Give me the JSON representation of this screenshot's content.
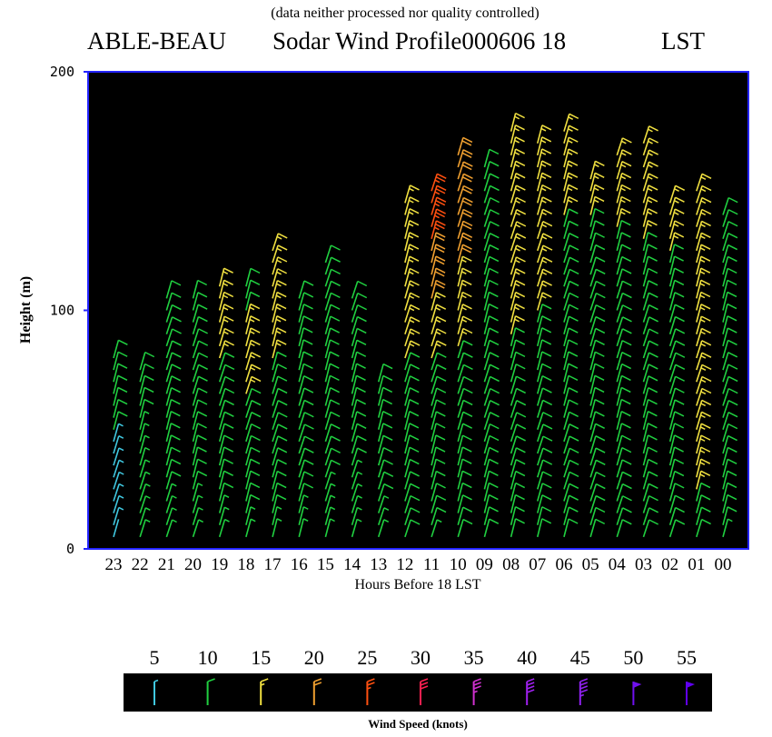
{
  "page": {
    "note": "(data neither processed nor quality controlled)",
    "title_station": "ABLE-BEAU",
    "title_main": "Sodar Wind Profile000606 18",
    "title_unit": "LST"
  },
  "chart_data": {
    "type": "wind-barb profile",
    "xlabel": "Hours Before  18    LST",
    "ylabel": "Height  (m)",
    "ylim": [
      0,
      200
    ],
    "y_ticks": [
      "0",
      "100",
      "200"
    ],
    "x_ticks": [
      "23",
      "22",
      "21",
      "20",
      "19",
      "18",
      "17",
      "16",
      "15",
      "14",
      "13",
      "12",
      "11",
      "10",
      "09",
      "08",
      "07",
      "06",
      "05",
      "04",
      "03",
      "02",
      "01",
      "00"
    ],
    "height_step_m": 5,
    "profiles": [
      {
        "hour": "23",
        "speeds_kt": [
          3,
          7,
          7,
          7,
          7,
          7,
          7,
          7,
          7,
          11,
          11,
          11,
          11,
          11,
          11,
          11
        ]
      },
      {
        "hour": "22",
        "speeds_kt": [
          8,
          8,
          8,
          8,
          8,
          8,
          8,
          8,
          8,
          8,
          12,
          12,
          12,
          12,
          12
        ]
      },
      {
        "hour": "21",
        "speeds_kt": [
          8,
          8,
          8,
          8,
          12,
          12,
          12,
          12,
          12,
          12,
          12,
          12,
          12,
          12,
          12,
          12,
          12,
          12,
          12,
          12,
          12
        ]
      },
      {
        "hour": "20",
        "speeds_kt": [
          8,
          8,
          8,
          8,
          12,
          12,
          12,
          12,
          12,
          12,
          12,
          12,
          12,
          12,
          12,
          12,
          12,
          12,
          12,
          12,
          12
        ]
      },
      {
        "hour": "19",
        "speeds_kt": [
          8,
          8,
          8,
          12,
          12,
          12,
          12,
          12,
          12,
          12,
          12,
          12,
          12,
          12,
          12,
          17,
          17,
          17,
          17,
          17,
          17,
          17
        ]
      },
      {
        "hour": "18",
        "speeds_kt": [
          8,
          8,
          12,
          12,
          12,
          12,
          12,
          12,
          12,
          12,
          12,
          12,
          17,
          17,
          17,
          17,
          17,
          17,
          17,
          12,
          12,
          12
        ]
      },
      {
        "hour": "17",
        "speeds_kt": [
          8,
          8,
          12,
          12,
          12,
          12,
          12,
          12,
          12,
          12,
          12,
          12,
          12,
          12,
          12,
          17,
          17,
          17,
          17,
          17,
          17,
          17,
          17,
          17,
          17
        ]
      },
      {
        "hour": "16",
        "speeds_kt": [
          8,
          8,
          8,
          12,
          12,
          12,
          12,
          12,
          12,
          12,
          12,
          12,
          12,
          12,
          12,
          12,
          12,
          12,
          12,
          12,
          12
        ]
      },
      {
        "hour": "15",
        "speeds_kt": [
          8,
          8,
          8,
          8,
          8,
          12,
          12,
          12,
          12,
          12,
          12,
          12,
          12,
          12,
          12,
          12,
          12,
          12,
          12,
          12,
          12,
          12,
          12,
          12
        ]
      },
      {
        "hour": "14",
        "speeds_kt": [
          8,
          8,
          8,
          8,
          8,
          8,
          12,
          12,
          12,
          12,
          12,
          12,
          12,
          12,
          12,
          12,
          12,
          12,
          12,
          12,
          12
        ]
      },
      {
        "hour": "13",
        "speeds_kt": [
          8,
          8,
          8,
          12,
          12,
          12,
          12,
          12,
          12,
          12,
          12,
          12,
          12,
          12
        ]
      },
      {
        "hour": "12",
        "speeds_kt": [
          12,
          12,
          12,
          12,
          12,
          12,
          12,
          12,
          12,
          12,
          12,
          12,
          12,
          12,
          12,
          17,
          17,
          17,
          17,
          17,
          17,
          17,
          17,
          17,
          17,
          17,
          17,
          17,
          17
        ]
      },
      {
        "hour": "11",
        "speeds_kt": [
          8,
          12,
          12,
          12,
          12,
          12,
          12,
          12,
          12,
          12,
          12,
          12,
          12,
          12,
          12,
          17,
          17,
          17,
          17,
          17,
          22,
          22,
          22,
          22,
          22,
          27,
          27,
          27,
          27,
          27
        ]
      },
      {
        "hour": "10",
        "speeds_kt": [
          12,
          12,
          12,
          12,
          12,
          12,
          12,
          12,
          12,
          12,
          12,
          12,
          12,
          12,
          12,
          12,
          17,
          17,
          17,
          17,
          17,
          17,
          17,
          22,
          22,
          22,
          22,
          22,
          22,
          22,
          22,
          22,
          22
        ]
      },
      {
        "hour": "09",
        "speeds_kt": [
          12,
          12,
          12,
          12,
          12,
          12,
          12,
          12,
          12,
          12,
          12,
          12,
          12,
          12,
          12,
          12,
          12,
          12,
          12,
          12,
          12,
          12,
          12,
          12,
          12,
          12,
          12,
          12,
          12,
          12,
          12,
          12
        ]
      },
      {
        "hour": "08",
        "speeds_kt": [
          12,
          12,
          12,
          12,
          12,
          12,
          12,
          12,
          12,
          12,
          12,
          12,
          12,
          12,
          12,
          12,
          12,
          17,
          17,
          17,
          17,
          17,
          17,
          17,
          17,
          17,
          17,
          17,
          17,
          17,
          17,
          17,
          17,
          17,
          17
        ]
      },
      {
        "hour": "07",
        "speeds_kt": [
          12,
          12,
          12,
          12,
          12,
          12,
          12,
          12,
          12,
          12,
          12,
          12,
          12,
          12,
          12,
          12,
          12,
          12,
          12,
          17,
          17,
          17,
          17,
          17,
          17,
          17,
          17,
          17,
          17,
          17,
          17,
          17,
          17,
          17
        ]
      },
      {
        "hour": "06",
        "speeds_kt": [
          12,
          12,
          12,
          12,
          12,
          12,
          12,
          12,
          12,
          12,
          12,
          12,
          12,
          12,
          12,
          12,
          12,
          12,
          12,
          12,
          12,
          12,
          12,
          12,
          12,
          12,
          12,
          17,
          17,
          17,
          17,
          17,
          17,
          17,
          17
        ]
      },
      {
        "hour": "05",
        "speeds_kt": [
          12,
          12,
          12,
          12,
          12,
          12,
          12,
          12,
          12,
          12,
          12,
          12,
          12,
          12,
          12,
          12,
          12,
          12,
          12,
          12,
          12,
          12,
          12,
          12,
          12,
          12,
          12,
          17,
          17,
          17,
          17
        ]
      },
      {
        "hour": "04",
        "speeds_kt": [
          12,
          12,
          12,
          12,
          12,
          12,
          12,
          12,
          12,
          12,
          12,
          12,
          12,
          12,
          12,
          12,
          12,
          12,
          12,
          12,
          12,
          12,
          12,
          12,
          12,
          12,
          17,
          17,
          17,
          17,
          17,
          17,
          17
        ]
      },
      {
        "hour": "03",
        "speeds_kt": [
          12,
          12,
          12,
          12,
          12,
          12,
          12,
          12,
          12,
          12,
          12,
          12,
          12,
          12,
          12,
          12,
          12,
          12,
          12,
          12,
          12,
          12,
          12,
          12,
          12,
          17,
          17,
          17,
          17,
          17,
          17,
          17,
          17,
          17
        ]
      },
      {
        "hour": "02",
        "speeds_kt": [
          12,
          12,
          12,
          12,
          12,
          12,
          12,
          12,
          12,
          12,
          12,
          12,
          12,
          12,
          12,
          12,
          12,
          12,
          12,
          12,
          12,
          12,
          12,
          12,
          17,
          17,
          17,
          17,
          17
        ]
      },
      {
        "hour": "01",
        "speeds_kt": [
          12,
          12,
          12,
          12,
          17,
          17,
          17,
          17,
          17,
          17,
          17,
          17,
          17,
          17,
          17,
          17,
          17,
          17,
          17,
          17,
          17,
          17,
          17,
          17,
          17,
          17,
          17,
          17,
          17,
          17
        ]
      },
      {
        "hour": "00",
        "speeds_kt": [
          8,
          12,
          12,
          12,
          12,
          12,
          12,
          12,
          12,
          12,
          12,
          12,
          12,
          12,
          12,
          12,
          12,
          12,
          12,
          12,
          12,
          12,
          12,
          12,
          12,
          12,
          12,
          12
        ]
      }
    ],
    "legend": {
      "title": "Wind Speed (knots)",
      "speeds": [
        "5",
        "10",
        "15",
        "20",
        "25",
        "30",
        "35",
        "40",
        "45",
        "50",
        "55"
      ],
      "colors": [
        "#40c8e0",
        "#20d040",
        "#f0e040",
        "#f0a030",
        "#ff5010",
        "#ff2050",
        "#d030d0",
        "#a020f0",
        "#9020f0",
        "#7010f0",
        "#6000f0"
      ]
    },
    "colors": {
      "plot_bg": "#000000",
      "frame": "#2424ff",
      "bands": [
        {
          "max_kt": 7,
          "color": "#40c8e0"
        },
        {
          "max_kt": 14,
          "color": "#20d040"
        },
        {
          "max_kt": 19,
          "color": "#f0e040"
        },
        {
          "max_kt": 24,
          "color": "#f0a030"
        },
        {
          "max_kt": 29,
          "color": "#ff5010"
        },
        {
          "max_kt": 99,
          "color": "#ff2050"
        }
      ]
    }
  }
}
